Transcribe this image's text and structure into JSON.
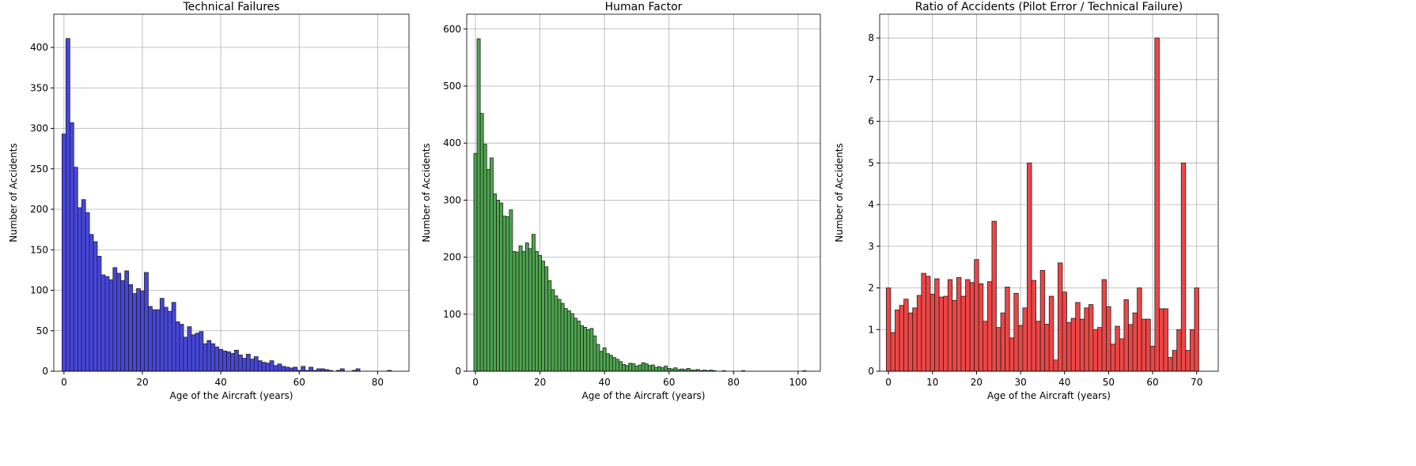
{
  "chart_data": [
    {
      "type": "histogram",
      "title": "Technical Failures",
      "xlabel": "Age of the Aircraft (years)",
      "ylabel": "Number of Accidents",
      "color": "#4545e2",
      "edgecolor": "#222222",
      "grid": true,
      "bins": [
        -0.5,
        0.5,
        1.5,
        2.5,
        3.5,
        4.5,
        5.5,
        6.5,
        7.5,
        8.5,
        9.5,
        10.5,
        11.5,
        12.5,
        13.5,
        14.5,
        15.5,
        16.5,
        17.5,
        18.5,
        19.5,
        20.5,
        21.5,
        22.5,
        23.5,
        24.5,
        25.5,
        26.5,
        27.5,
        28.5,
        29.5,
        30.5,
        31.5,
        32.5,
        33.5,
        34.5,
        35.5,
        36.5,
        37.5,
        38.5,
        39.5,
        40.5,
        41.5,
        42.5,
        43.5,
        44.5,
        45.5,
        46.5,
        47.5,
        48.5,
        49.5,
        50.5,
        51.5,
        52.5,
        53.5,
        54.5,
        55.5,
        56.5,
        57.5,
        58.5,
        59.5,
        60.5,
        61.5,
        62.5,
        63.5,
        64.5,
        65.5,
        66.5,
        67.5,
        68.5,
        69.5,
        70.5,
        71.5,
        72.5,
        73.5,
        74.5,
        75.5,
        76.5,
        77.5,
        78.5,
        79.5,
        80.5,
        81.5,
        82.5,
        83.5
      ],
      "values": [
        293,
        411,
        307,
        252,
        202,
        212,
        196,
        169,
        160,
        142,
        119,
        117,
        113,
        128,
        121,
        112,
        124,
        107,
        96,
        102,
        99,
        122,
        80,
        76,
        76,
        90,
        79,
        74,
        85,
        61,
        58,
        42,
        55,
        45,
        47,
        49,
        34,
        38,
        34,
        30,
        27,
        25,
        24,
        22,
        26,
        20,
        16,
        21,
        15,
        18,
        13,
        11,
        10,
        13,
        7,
        9,
        6,
        5,
        4,
        5,
        1,
        6,
        1,
        5,
        1,
        3,
        3,
        2,
        1,
        0,
        1,
        3,
        0,
        0,
        1,
        3,
        0,
        0,
        0,
        0,
        0,
        0,
        0,
        1
      ],
      "xlim": [
        -2.6,
        88
      ],
      "ylim": [
        0,
        441
      ],
      "xticks": [
        0,
        20,
        40,
        60,
        80
      ],
      "yticks": [
        0,
        50,
        100,
        150,
        200,
        250,
        300,
        350,
        400
      ]
    },
    {
      "type": "histogram",
      "title": "Human Factor",
      "xlabel": "Age of the Aircraft (years)",
      "ylabel": "Number of Accidents",
      "color": "#4ca64c",
      "edgecolor": "#222222",
      "grid": true,
      "bins": [
        -0.5,
        0.5,
        1.5,
        2.5,
        3.5,
        4.5,
        5.5,
        6.5,
        7.5,
        8.5,
        9.5,
        10.5,
        11.5,
        12.5,
        13.5,
        14.5,
        15.5,
        16.5,
        17.5,
        18.5,
        19.5,
        20.5,
        21.5,
        22.5,
        23.5,
        24.5,
        25.5,
        26.5,
        27.5,
        28.5,
        29.5,
        30.5,
        31.5,
        32.5,
        33.5,
        34.5,
        35.5,
        36.5,
        37.5,
        38.5,
        39.5,
        40.5,
        41.5,
        42.5,
        43.5,
        44.5,
        45.5,
        46.5,
        47.5,
        48.5,
        49.5,
        50.5,
        51.5,
        52.5,
        53.5,
        54.5,
        55.5,
        56.5,
        57.5,
        58.5,
        59.5,
        60.5,
        61.5,
        62.5,
        63.5,
        64.5,
        65.5,
        66.5,
        67.5,
        68.5,
        69.5,
        70.5,
        71.5,
        72.5,
        73.5,
        74.5,
        75.5,
        76.5,
        77.5,
        78.5,
        79.5,
        80.5,
        81.5,
        82.5,
        83.5,
        84.5,
        85.5,
        86.5,
        87.5,
        88.5,
        89.5,
        90.5,
        91.5,
        92.5,
        93.5,
        94.5,
        95.5,
        96.5,
        97.5,
        98.5,
        99.5,
        100.5,
        101.5,
        102.5
      ],
      "values": [
        382,
        583,
        452,
        398,
        354,
        374,
        311,
        300,
        295,
        272,
        271,
        283,
        210,
        209,
        220,
        210,
        225,
        215,
        240,
        210,
        203,
        193,
        183,
        159,
        143,
        132,
        126,
        119,
        110,
        106,
        101,
        93,
        88,
        80,
        77,
        73,
        75,
        62,
        47,
        35,
        41,
        31,
        28,
        24,
        21,
        17,
        12,
        10,
        14,
        13,
        9,
        11,
        15,
        13,
        10,
        11,
        7,
        8,
        6,
        9,
        5,
        4,
        6,
        3,
        4,
        3,
        5,
        2,
        2,
        3,
        1,
        2,
        1,
        2,
        1,
        0,
        0,
        1,
        0,
        0,
        0,
        0,
        0,
        1,
        0,
        0,
        0,
        0,
        0,
        0,
        0,
        0,
        0,
        0,
        0,
        0,
        0,
        0,
        0,
        0,
        0,
        0,
        1
      ],
      "xlim": [
        -2.7,
        106.9
      ],
      "ylim": [
        0,
        626
      ],
      "xticks": [
        0,
        20,
        40,
        60,
        80,
        100
      ],
      "yticks": [
        0,
        100,
        200,
        300,
        400,
        500,
        600
      ]
    },
    {
      "type": "histogram",
      "title": "Ratio of Accidents (Pilot Error / Technical Failure)",
      "xlabel": "Age of the Aircraft (years)",
      "ylabel": "Number of Accidents",
      "color": "#ef4545",
      "edgecolor": "#222222",
      "grid": true,
      "bins": [
        -0.5,
        0.5,
        1.5,
        2.5,
        3.5,
        4.5,
        5.5,
        6.5,
        7.5,
        8.5,
        9.5,
        10.5,
        11.5,
        12.5,
        13.5,
        14.5,
        15.5,
        16.5,
        17.5,
        18.5,
        19.5,
        20.5,
        21.5,
        22.5,
        23.5,
        24.5,
        25.5,
        26.5,
        27.5,
        28.5,
        29.5,
        30.5,
        31.5,
        32.5,
        33.5,
        34.5,
        35.5,
        36.5,
        37.5,
        38.5,
        39.5,
        40.5,
        41.5,
        42.5,
        43.5,
        44.5,
        45.5,
        46.5,
        47.5,
        48.5,
        49.5,
        50.5,
        51.5,
        52.5,
        53.5,
        54.5,
        55.5,
        56.5,
        57.5,
        58.5,
        59.5,
        60.5,
        61.5,
        62.5,
        63.5,
        64.5,
        65.5,
        66.5,
        67.5,
        68.5,
        69.5,
        70.5
      ],
      "values": [
        2.0,
        0.93,
        1.47,
        1.58,
        1.73,
        1.4,
        1.52,
        1.82,
        2.35,
        2.28,
        1.85,
        2.22,
        1.78,
        1.8,
        2.2,
        1.7,
        2.25,
        1.8,
        2.2,
        2.13,
        2.68,
        2.1,
        1.2,
        2.15,
        3.6,
        1.05,
        1.4,
        2.02,
        0.8,
        1.87,
        1.1,
        1.52,
        5.0,
        2.18,
        1.2,
        2.42,
        1.13,
        1.8,
        0.27,
        2.6,
        1.9,
        1.17,
        1.27,
        1.65,
        1.25,
        1.52,
        1.6,
        1.0,
        1.05,
        2.2,
        1.55,
        0.65,
        1.08,
        0.78,
        1.72,
        1.12,
        1.4,
        2.0,
        1.25,
        1.25,
        0.6,
        8.0,
        1.5,
        1.5,
        0.33,
        0.5,
        1.0,
        5.0,
        0.5,
        1.0,
        2.0
      ],
      "xlim": [
        -2,
        74.9
      ],
      "ylim": [
        0,
        8.57
      ],
      "xticks": [
        0,
        10,
        20,
        30,
        40,
        50,
        60,
        70
      ],
      "yticks": [
        0,
        1,
        2,
        3,
        4,
        5,
        6,
        7,
        8
      ]
    }
  ]
}
